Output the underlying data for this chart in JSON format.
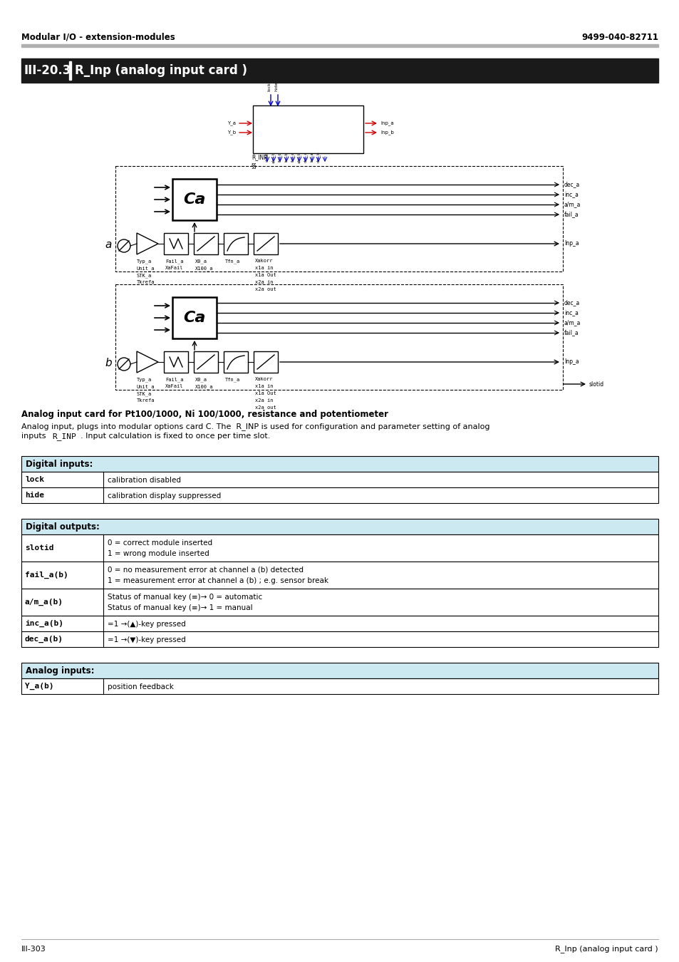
{
  "header_left": "Modular I/O - extension-modules",
  "header_right": "9499-040-82711",
  "header_bar_color": "#b0b0b0",
  "section_number": "III-20.3",
  "section_title": "R_Inp (analog input card )",
  "section_bg": "#1a1a1a",
  "footer_left": "III-303",
  "footer_right": "R_Inp (analog input card )",
  "description_title": "Analog input card for Pt100/1000, Ni 100/1000, resistance and potentiometer",
  "description_line1": "Analog input, plugs into modular options card C. The  R_INP is used for configuration and parameter setting of analog",
  "description_line2": "inputs R_INP. Input calculation is fixed to once per time slot.",
  "description_monospace": "R_INP",
  "table1_header": "Digital inputs:",
  "table1_header_bg": "#cce8f0",
  "table1_rows": [
    [
      "lock",
      "calibration disabled"
    ],
    [
      "hide",
      "calibration display suppressed"
    ]
  ],
  "table2_header": "Digital outputs:",
  "table2_header_bg": "#cce8f0",
  "table2_rows": [
    [
      "slotid",
      "0 = correct module inserted\n1 = wrong module inserted"
    ],
    [
      "fail_a(b)",
      "0 = no measurement error at channel a (b) detected\n1 = measurement error at channel a (b) ; e.g. sensor break"
    ],
    [
      "a/m_a(b)",
      "Status of manual key (≡)→ 0 = automatic\nStatus of manual key (≡)→ 1 = manual"
    ],
    [
      "inc_a(b)",
      "=1 →(▲)-key pressed"
    ],
    [
      "dec_a(b)",
      "=1 →(▼)-key pressed"
    ]
  ],
  "table3_header": "Analog inputs:",
  "table3_header_bg": "#cce8f0",
  "table3_rows": [
    [
      "Y_a(b)",
      "position feedback"
    ]
  ],
  "channel_a_outputs": [
    "dec_a",
    "inc_a",
    "a/m_a",
    "fail_a"
  ],
  "channel_b_outputs": [
    "dec_a",
    "inc_a",
    "a/m_a",
    "fail_a"
  ],
  "params_col0": [
    "Typ_a",
    "Unit_a",
    "STK_a",
    "Tkrefa"
  ],
  "params_col1": [
    "Fail_a",
    "XaFail"
  ],
  "params_col2": [
    "X0_a",
    "X100_a"
  ],
  "params_col3": [
    "Tfn_a"
  ],
  "params_col4": [
    "Xakorr",
    "x1a in",
    "x1a Out",
    "x2a in",
    "x2a out"
  ]
}
